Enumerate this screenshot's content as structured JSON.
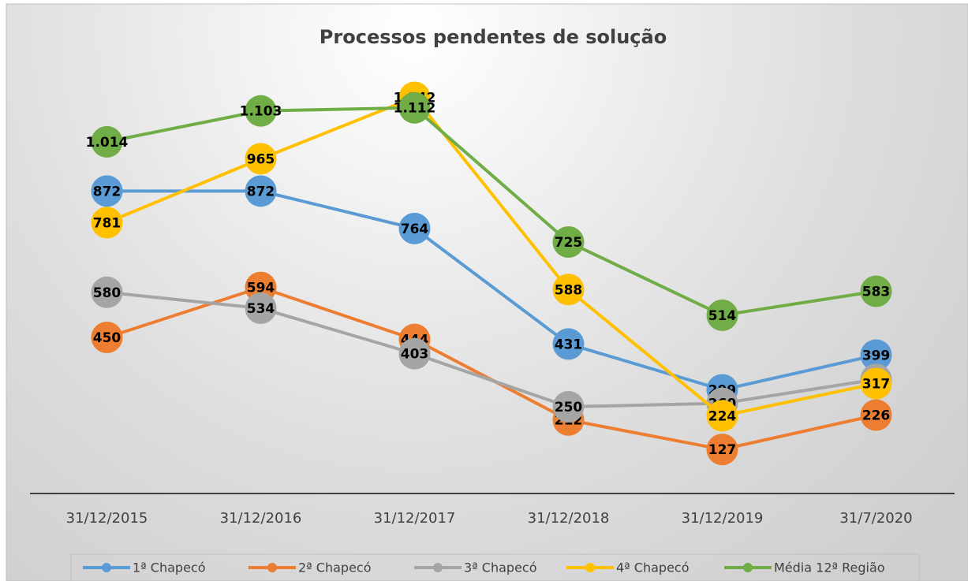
{
  "chart_data": {
    "type": "line",
    "title": "Processos pendentes de solução",
    "categories": [
      "31/12/2015",
      "31/12/2016",
      "31/12/2017",
      "31/12/2018",
      "31/12/2019",
      "31/7/2020"
    ],
    "series": [
      {
        "name": "1ª Chapecó",
        "color": "#5b9bd5",
        "values": [
          872,
          872,
          764,
          431,
          299,
          399
        ],
        "value_labels": [
          "872",
          "872",
          "764",
          "431",
          "299",
          "399"
        ]
      },
      {
        "name": "2ª Chapecó",
        "color": "#ed7d31",
        "values": [
          450,
          594,
          444,
          212,
          127,
          226
        ],
        "value_labels": [
          "450",
          "594",
          "444",
          "212",
          "127",
          "226"
        ]
      },
      {
        "name": "3ª Chapecó",
        "color": "#a5a5a5",
        "values": [
          580,
          534,
          403,
          250,
          260,
          329
        ],
        "value_labels": [
          "580",
          "534",
          "403",
          "250",
          "260",
          "329"
        ]
      },
      {
        "name": "4ª Chapecó",
        "color": "#ffc000",
        "values": [
          781,
          965,
          1142,
          588,
          224,
          317
        ],
        "value_labels": [
          "781",
          "965",
          "1.142",
          "588",
          "224",
          "317"
        ]
      },
      {
        "name": "Média 12ª Região",
        "color": "#70ad47",
        "values": [
          1014,
          1103,
          1112,
          725,
          514,
          583
        ],
        "value_labels": [
          "1.014",
          "1.103",
          "1.112",
          "725",
          "514",
          "583"
        ]
      }
    ],
    "ylim": [
      0,
      1200
    ],
    "legend": "bottom"
  }
}
